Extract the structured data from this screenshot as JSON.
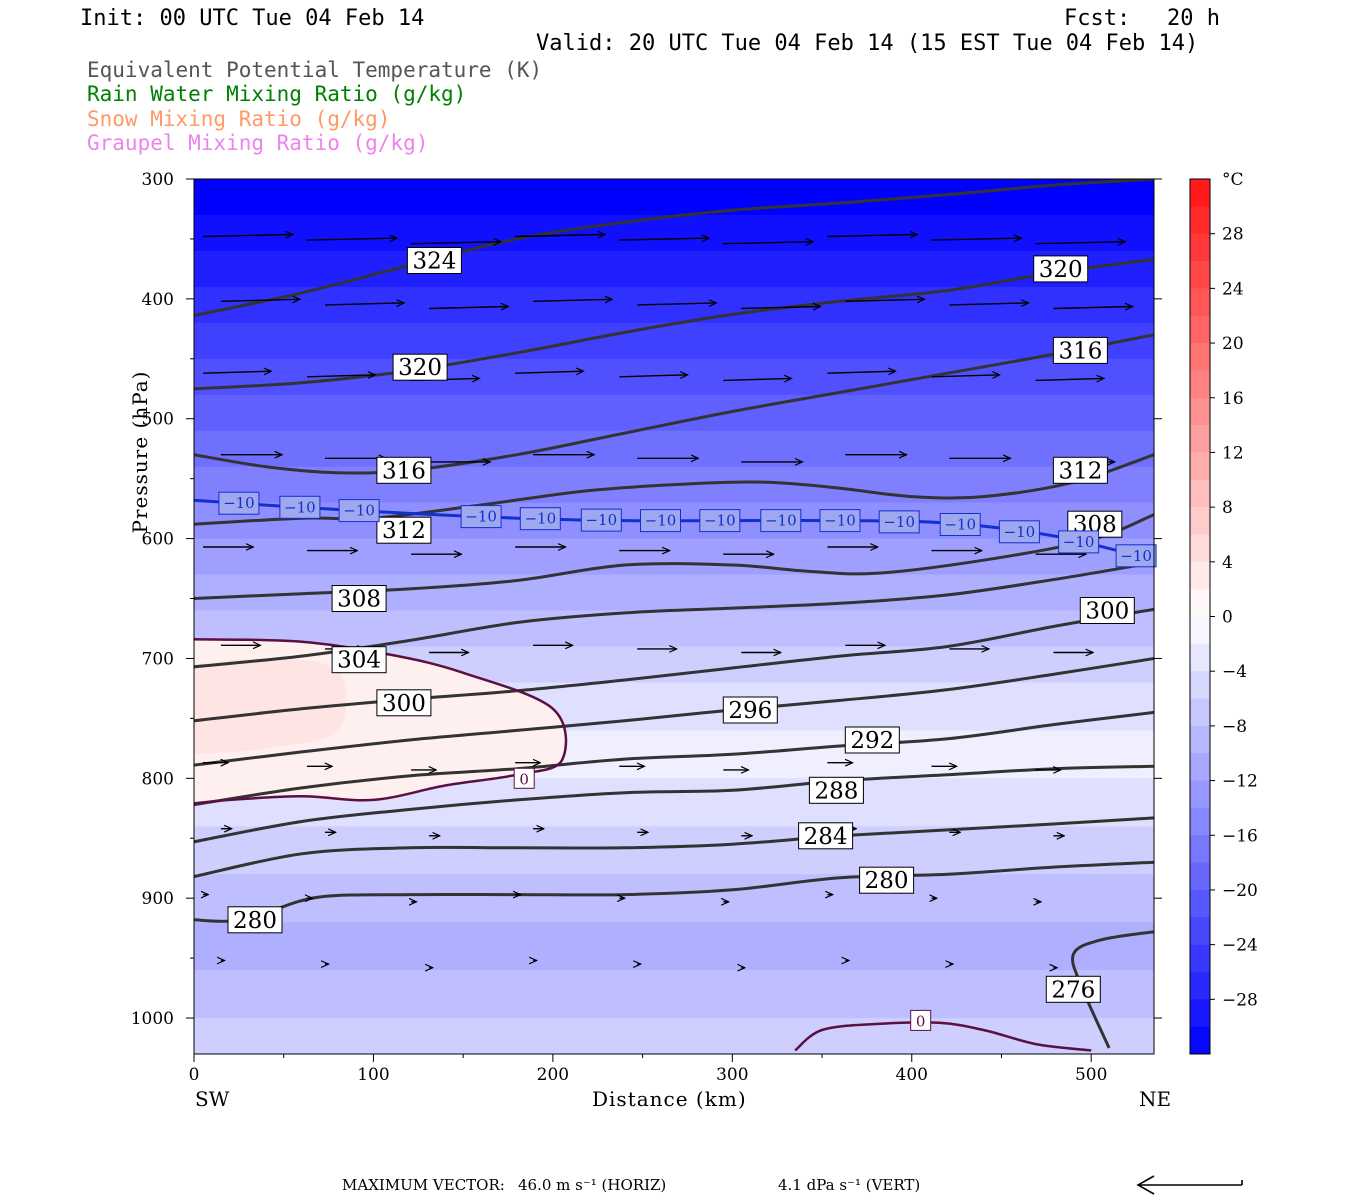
{
  "header": {
    "init": "Init: 00 UTC Tue 04 Feb 14",
    "fcst_label": "Fcst:",
    "fcst_value": "20 h",
    "valid": "Valid: 20 UTC Tue 04 Feb 14 (15 EST Tue 04 Feb 14)"
  },
  "legend": [
    {
      "text": "Equivalent Potential Temperature (K)",
      "color": "#555555"
    },
    {
      "text": "Rain Water Mixing Ratio (g/kg)",
      "color": "#008000"
    },
    {
      "text": "Snow Mixing Ratio (g/kg)",
      "color": "#ff9966"
    },
    {
      "text": "Graupel Mixing Ratio (g/kg)",
      "color": "#ee82ee"
    }
  ],
  "chart_data": {
    "type": "cross-section",
    "xlabel": "Distance (km)",
    "ylabel": "Pressure (hPa)",
    "x_ticks": [
      0,
      100,
      200,
      300,
      400,
      500
    ],
    "x_range": [
      0,
      535
    ],
    "y_ticks": [
      300,
      400,
      500,
      600,
      700,
      800,
      900,
      1000
    ],
    "y_range": [
      300,
      1030
    ],
    "x_end_labels": {
      "left": "SW",
      "right": "NE"
    },
    "colorbar": {
      "unit": "°C",
      "tick_labels": [
        "28",
        "24",
        "20",
        "16",
        "12",
        "8",
        "4",
        "0",
        "−4",
        "−8",
        "−12",
        "−16",
        "−20",
        "−24",
        "−28"
      ],
      "tick_values": [
        28,
        24,
        20,
        16,
        12,
        8,
        4,
        0,
        -4,
        -8,
        -12,
        -16,
        -20,
        -24,
        -28
      ],
      "range": [
        -32,
        32
      ],
      "step": 2
    },
    "theta_e_contours": [
      {
        "level": 324,
        "points": [
          [
            0,
            414
          ],
          [
            60,
            395
          ],
          [
            120,
            372
          ],
          [
            180,
            350
          ],
          [
            240,
            336
          ],
          [
            300,
            326
          ],
          [
            360,
            320
          ],
          [
            420,
            313
          ],
          [
            480,
            305
          ],
          [
            535,
            300
          ]
        ]
      },
      {
        "level": 320,
        "points": [
          [
            0,
            475
          ],
          [
            60,
            470
          ],
          [
            120,
            460
          ],
          [
            180,
            445
          ],
          [
            240,
            428
          ],
          [
            300,
            413
          ],
          [
            360,
            402
          ],
          [
            420,
            393
          ],
          [
            480,
            378
          ],
          [
            535,
            367
          ]
        ]
      },
      {
        "level": 316,
        "points": [
          [
            0,
            530
          ],
          [
            40,
            540
          ],
          [
            80,
            545
          ],
          [
            120,
            543
          ],
          [
            180,
            530
          ],
          [
            240,
            512
          ],
          [
            300,
            494
          ],
          [
            360,
            478
          ],
          [
            420,
            462
          ],
          [
            480,
            446
          ],
          [
            535,
            430
          ]
        ]
      },
      {
        "level": 312,
        "points": [
          [
            0,
            588
          ],
          [
            60,
            583
          ],
          [
            100,
            583
          ],
          [
            160,
            572
          ],
          [
            220,
            560
          ],
          [
            280,
            554
          ],
          [
            320,
            553
          ],
          [
            360,
            558
          ],
          [
            400,
            565
          ],
          [
            440,
            565
          ],
          [
            490,
            553
          ],
          [
            535,
            530
          ]
        ]
      },
      {
        "level": 308,
        "points": [
          [
            0,
            650
          ],
          [
            60,
            646
          ],
          [
            120,
            642
          ],
          [
            180,
            635
          ],
          [
            240,
            622
          ],
          [
            300,
            622
          ],
          [
            340,
            627
          ],
          [
            380,
            629
          ],
          [
            440,
            618
          ],
          [
            500,
            601
          ],
          [
            535,
            580
          ]
        ]
      },
      {
        "level": 304,
        "points": [
          [
            0,
            707
          ],
          [
            60,
            698
          ],
          [
            120,
            685
          ],
          [
            180,
            670
          ],
          [
            240,
            662
          ],
          [
            300,
            658
          ],
          [
            360,
            654
          ],
          [
            420,
            647
          ],
          [
            480,
            634
          ],
          [
            535,
            620
          ]
        ]
      },
      {
        "level": 300,
        "points": [
          [
            0,
            752
          ],
          [
            60,
            742
          ],
          [
            120,
            734
          ],
          [
            180,
            727
          ],
          [
            240,
            718
          ],
          [
            300,
            708
          ],
          [
            360,
            698
          ],
          [
            420,
            690
          ],
          [
            480,
            673
          ],
          [
            535,
            659
          ]
        ]
      },
      {
        "level": 296,
        "points": [
          [
            0,
            789
          ],
          [
            60,
            778
          ],
          [
            120,
            768
          ],
          [
            180,
            760
          ],
          [
            240,
            752
          ],
          [
            300,
            743
          ],
          [
            360,
            735
          ],
          [
            420,
            726
          ],
          [
            480,
            713
          ],
          [
            535,
            700
          ]
        ]
      },
      {
        "level": 292,
        "points": [
          [
            0,
            822
          ],
          [
            60,
            808
          ],
          [
            120,
            798
          ],
          [
            180,
            792
          ],
          [
            240,
            784
          ],
          [
            300,
            780
          ],
          [
            360,
            773
          ],
          [
            420,
            767
          ],
          [
            480,
            755
          ],
          [
            535,
            745
          ]
        ]
      },
      {
        "level": 288,
        "points": [
          [
            0,
            853
          ],
          [
            60,
            836
          ],
          [
            120,
            826
          ],
          [
            180,
            818
          ],
          [
            240,
            812
          ],
          [
            300,
            810
          ],
          [
            360,
            802
          ],
          [
            420,
            797
          ],
          [
            480,
            792
          ],
          [
            535,
            790
          ]
        ]
      },
      {
        "level": 284,
        "points": [
          [
            0,
            882
          ],
          [
            60,
            863
          ],
          [
            120,
            858
          ],
          [
            180,
            858
          ],
          [
            240,
            858
          ],
          [
            300,
            855
          ],
          [
            360,
            848
          ],
          [
            420,
            843
          ],
          [
            480,
            838
          ],
          [
            535,
            833
          ]
        ]
      },
      {
        "level": 280,
        "points": [
          [
            0,
            918
          ],
          [
            20,
            919
          ],
          [
            40,
            912
          ],
          [
            70,
            899
          ],
          [
            120,
            897
          ],
          [
            180,
            897
          ],
          [
            240,
            897
          ],
          [
            300,
            893
          ],
          [
            360,
            883
          ],
          [
            420,
            880
          ],
          [
            480,
            874
          ],
          [
            535,
            870
          ]
        ]
      },
      {
        "level": 276,
        "points": [
          [
            535,
            928
          ],
          [
            505,
            935
          ],
          [
            490,
            947
          ],
          [
            495,
            975
          ],
          [
            510,
            1025
          ]
        ]
      }
    ],
    "isotherm": {
      "level": -10,
      "points": [
        [
          0,
          568
        ],
        [
          60,
          574
        ],
        [
          120,
          579
        ],
        [
          180,
          583
        ],
        [
          240,
          585
        ],
        [
          300,
          585
        ],
        [
          360,
          585
        ],
        [
          420,
          587
        ],
        [
          480,
          598
        ],
        [
          535,
          618
        ]
      ]
    },
    "zero_contour": {
      "points": [
        [
          0,
          684
        ],
        [
          60,
          686
        ],
        [
          110,
          697
        ],
        [
          150,
          712
        ],
        [
          200,
          742
        ],
        [
          205,
          785
        ],
        [
          180,
          797
        ],
        [
          140,
          806
        ],
        [
          100,
          818
        ],
        [
          60,
          815
        ],
        [
          20,
          818
        ],
        [
          0,
          821
        ]
      ]
    },
    "contour_labels": [
      {
        "text": "324",
        "x": 134,
        "p": 368,
        "color": "#000000"
      },
      {
        "text": "320",
        "x": 483,
        "p": 375,
        "color": "#000000"
      },
      {
        "text": "320",
        "x": 126,
        "p": 457,
        "color": "#000000"
      },
      {
        "text": "316",
        "x": 494,
        "p": 443,
        "color": "#000000"
      },
      {
        "text": "316",
        "x": 117,
        "p": 543,
        "color": "#000000"
      },
      {
        "text": "312",
        "x": 494,
        "p": 543,
        "color": "#000000"
      },
      {
        "text": "312",
        "x": 117,
        "p": 593,
        "color": "#000000"
      },
      {
        "text": "308",
        "x": 502,
        "p": 588,
        "color": "#000000"
      },
      {
        "text": "308",
        "x": 92,
        "p": 650,
        "color": "#000000"
      },
      {
        "text": "300",
        "x": 509,
        "p": 660,
        "color": "#000000"
      },
      {
        "text": "304",
        "x": 92,
        "p": 701,
        "color": "#000000"
      },
      {
        "text": "300",
        "x": 117,
        "p": 737,
        "color": "#000000"
      },
      {
        "text": "296",
        "x": 310,
        "p": 743,
        "color": "#000000"
      },
      {
        "text": "292",
        "x": 378,
        "p": 768,
        "color": "#000000"
      },
      {
        "text": "288",
        "x": 358,
        "p": 810,
        "color": "#000000"
      },
      {
        "text": "284",
        "x": 352,
        "p": 848,
        "color": "#000000"
      },
      {
        "text": "280",
        "x": 386,
        "p": 885,
        "color": "#000000"
      },
      {
        "text": "280",
        "x": 34,
        "p": 918,
        "color": "#000000"
      },
      {
        "text": "276",
        "x": 490,
        "p": 976,
        "color": "#000000"
      },
      {
        "text": "0",
        "x": 184,
        "p": 800,
        "color": "#000000"
      },
      {
        "text": "0",
        "x": 405,
        "p": 1002,
        "color": "#000000"
      }
    ],
    "isotherm_labels": [
      "−10",
      "−10",
      "−10",
      "−10",
      "−10",
      "−10",
      "−10",
      "−10",
      "−10",
      "−10",
      "−10",
      "−10",
      "−10",
      "−10",
      "−10"
    ],
    "footer": {
      "max_vector_label": "MAXIMUM VECTOR:",
      "horiz": "46.0 m s⁻¹ (HORIZ)",
      "vert": "4.1 dPa s⁻¹ (VERT)"
    }
  }
}
